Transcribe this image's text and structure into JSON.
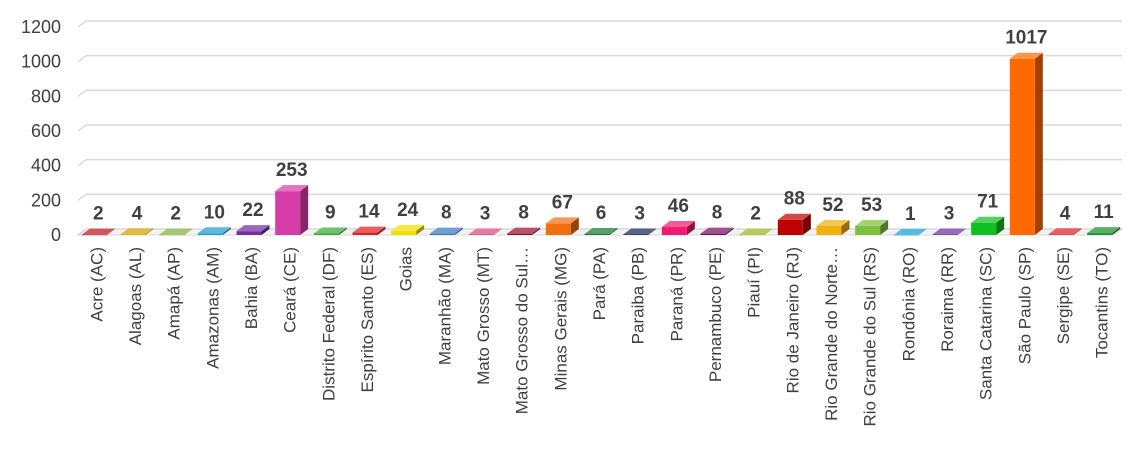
{
  "chart_data": {
    "type": "bar",
    "style": "3d-column",
    "grid": true,
    "ylim": [
      0,
      1200
    ],
    "yticks": [
      0,
      200,
      400,
      600,
      800,
      1000,
      1200
    ],
    "categories": [
      "Acre (AC)",
      "Alagoas (AL)",
      "Amapá (AP)",
      "Amazonas (AM)",
      "Bahia (BA)",
      "Ceará (CE)",
      "Distrito Federal (DF)",
      "Espírito Santo (ES)",
      "Goias",
      "Maranhão (MA)",
      "Mato Grosso (MT)",
      "Mato Grosso do Sul…",
      "Minas Gerais (MG)",
      "Pará (PA)",
      "Paraiba (PB)",
      "Paraná (PR)",
      "Pernambuco (PE)",
      "Piauí (PI)",
      "Rio de Janeiro (RJ)",
      "Rio Grande do Norte…",
      "Rio Grande do Sul (RS)",
      "Rondônia (RO)",
      "Roraima (RR)",
      "Santa Catarina (SC)",
      "São Paulo (SP)",
      "Sergipe (SE)",
      "Tocantins (TO)"
    ],
    "values": [
      2,
      4,
      2,
      10,
      22,
      253,
      9,
      14,
      24,
      8,
      3,
      8,
      67,
      6,
      3,
      46,
      8,
      2,
      88,
      52,
      53,
      1,
      3,
      71,
      1017,
      4,
      11
    ],
    "colors": [
      "#c0141c",
      "#d6a000",
      "#7fb23c",
      "#1e9fd0",
      "#7030a0",
      "#d63ca8",
      "#3aaa35",
      "#e0201c",
      "#f0e000",
      "#3a7ac0",
      "#e04880",
      "#9a1030",
      "#f07010",
      "#1a7a30",
      "#14285a",
      "#f01870",
      "#7a1060",
      "#9ab820",
      "#c00000",
      "#f0b010",
      "#80c040",
      "#10a0d0",
      "#7030a0",
      "#10c020",
      "#ff6a00",
      "#e02020",
      "#1a9030"
    ]
  }
}
